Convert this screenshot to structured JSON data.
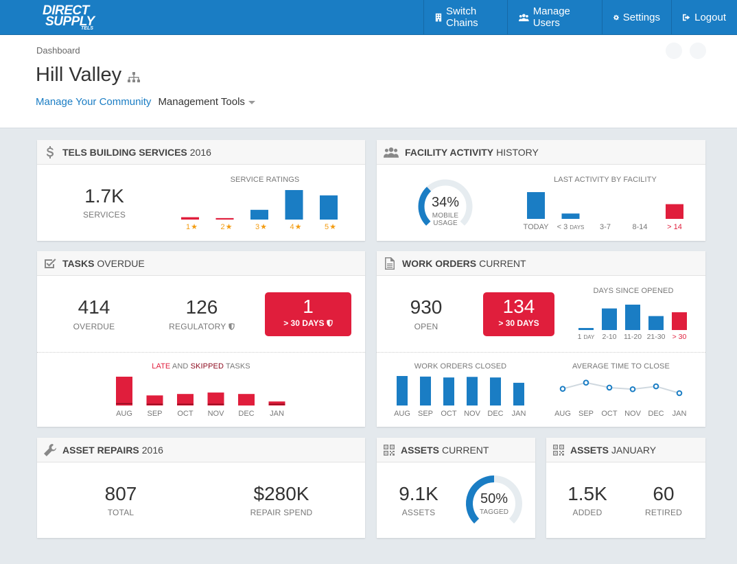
{
  "logo": {
    "line1": "DIRECT",
    "line2": "SUPPLY",
    "line3": "TELS"
  },
  "nav": [
    {
      "label": "Switch Chains",
      "icon": "building-icon"
    },
    {
      "label": "Manage Users",
      "icon": "users-icon"
    },
    {
      "label": "Settings",
      "icon": "gear-icon"
    },
    {
      "label": "Logout",
      "icon": "logout-icon"
    }
  ],
  "breadcrumb": "Dashboard",
  "page_title": "Hill Valley",
  "subnav": {
    "link": "Manage Your Community",
    "dropdown": "Management Tools"
  },
  "building": {
    "title_bold": "TELS BUILDING SERVICES",
    "title_rest": "2016",
    "big": "1.7K",
    "big_label": "SERVICES",
    "chart_label": "SERVICE RATINGS",
    "ratings": [
      {
        "label": "1",
        "value": 0.08,
        "color": "#e01e3c"
      },
      {
        "label": "2",
        "value": 0.05,
        "color": "#e01e3c"
      },
      {
        "label": "3",
        "value": 0.33,
        "color": "#1a7dc4"
      },
      {
        "label": "4",
        "value": 1.0,
        "color": "#1a7dc4"
      },
      {
        "label": "5",
        "value": 0.82,
        "color": "#1a7dc4"
      }
    ]
  },
  "facility": {
    "title_bold": "FACILITY ACTIVITY",
    "title_rest": "HISTORY",
    "gauge_value": "34%",
    "gauge_fraction": 0.34,
    "gauge_l1": "MOBILE",
    "gauge_l2": "USAGE",
    "chart_label": "LAST ACTIVITY BY FACILITY",
    "bars": [
      {
        "label": "TODAY",
        "value": 1.0,
        "color": "#1a7dc4"
      },
      {
        "label": "< 3",
        "suffix": "DAYS",
        "value": 0.2,
        "color": "#1a7dc4"
      },
      {
        "label": "3-7",
        "value": 0,
        "color": "#1a7dc4"
      },
      {
        "label": "8-14",
        "value": 0,
        "color": "#1a7dc4"
      },
      {
        "label": "> 14",
        "value": 0.55,
        "color": "#e01e3c"
      }
    ]
  },
  "tasks": {
    "title_bold": "TASKS",
    "title_rest": "OVERDUE",
    "overdue": "414",
    "overdue_label": "OVERDUE",
    "regulatory": "126",
    "regulatory_label": "REGULATORY",
    "over30": "1",
    "over30_label": "> 30 DAYS",
    "chart_late": "LATE",
    "chart_and": "AND",
    "chart_skipped": "SKIPPED",
    "chart_tasks": "TASKS",
    "months": [
      {
        "label": "AUG",
        "late": 1.0,
        "skipped": 0.08
      },
      {
        "label": "SEP",
        "late": 0.35,
        "skipped": 0.06
      },
      {
        "label": "OCT",
        "late": 0.4,
        "skipped": 0.06
      },
      {
        "label": "NOV",
        "late": 0.45,
        "skipped": 0.06
      },
      {
        "label": "DEC",
        "late": 0.4,
        "skipped": 0.0
      },
      {
        "label": "JAN",
        "late": 0.14,
        "skipped": 0.06
      }
    ]
  },
  "workorders": {
    "title_bold": "WORK ORDERS",
    "title_rest": "CURRENT",
    "open": "930",
    "open_label": "OPEN",
    "over30": "134",
    "over30_label": "> 30 DAYS",
    "days_label": "DAYS SINCE OPENED",
    "days": [
      {
        "label": "1",
        "suffix": "DAY",
        "value": 0.08,
        "color": "#1a7dc4"
      },
      {
        "label": "2-10",
        "value": 0.85,
        "color": "#1a7dc4"
      },
      {
        "label": "11-20",
        "value": 1.0,
        "color": "#1a7dc4"
      },
      {
        "label": "21-30",
        "value": 0.55,
        "color": "#1a7dc4"
      },
      {
        "label": "> 30",
        "value": 0.7,
        "color": "#e01e3c"
      }
    ],
    "closed_label": "WORK ORDERS CLOSED",
    "closed": [
      {
        "label": "AUG",
        "value": 1.0
      },
      {
        "label": "SEP",
        "value": 0.98
      },
      {
        "label": "OCT",
        "value": 0.95
      },
      {
        "label": "NOV",
        "value": 0.97
      },
      {
        "label": "DEC",
        "value": 0.95
      },
      {
        "label": "JAN",
        "value": 0.77
      }
    ],
    "avg_label": "AVERAGE TIME TO CLOSE",
    "avg": [
      {
        "label": "AUG",
        "value": 0.35
      },
      {
        "label": "SEP",
        "value": 0.85
      },
      {
        "label": "OCT",
        "value": 0.45
      },
      {
        "label": "NOV",
        "value": 0.32
      },
      {
        "label": "DEC",
        "value": 0.55
      },
      {
        "label": "JAN",
        "value": 0.0
      }
    ]
  },
  "repairs": {
    "title_bold": "ASSET REPAIRS",
    "title_rest": "2016",
    "total": "807",
    "total_label": "TOTAL",
    "spend": "$280K",
    "spend_label": "REPAIR SPEND"
  },
  "assets": {
    "title_bold": "ASSETS",
    "title_rest": "CURRENT",
    "count": "9.1K",
    "count_label": "ASSETS",
    "tagged": "50%",
    "tagged_fraction": 0.5,
    "tagged_label": "TAGGED"
  },
  "assets_jan": {
    "title_bold": "ASSETS",
    "title_rest": "JANUARY",
    "added": "1.5K",
    "added_label": "ADDED",
    "retired": "60",
    "retired_label": "RETIRED"
  },
  "colors": {
    "blue": "#1a7dc4",
    "red": "#e01e3c",
    "star": "#f39c12",
    "gauge_track": "#e6ecf0"
  }
}
